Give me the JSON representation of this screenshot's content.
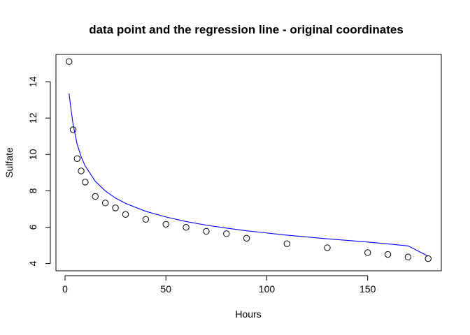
{
  "chart_data": {
    "type": "scatter",
    "title": "data point and the regression line - original coordinates",
    "xlabel": "Hours",
    "ylabel": "Sulfate",
    "xlim": [
      -4.5,
      186.5
    ],
    "ylim": [
      3.6,
      15.5
    ],
    "x_ticks": [
      0,
      50,
      100,
      150
    ],
    "y_ticks": [
      4,
      6,
      8,
      10,
      12,
      14
    ],
    "points": {
      "x": [
        2,
        4,
        6,
        8,
        10,
        15,
        20,
        25,
        30,
        40,
        50,
        60,
        70,
        80,
        90,
        110,
        130,
        150,
        160,
        170,
        180
      ],
      "y": [
        15.11,
        11.36,
        9.77,
        9.09,
        8.48,
        7.69,
        7.33,
        7.06,
        6.7,
        6.43,
        6.16,
        5.99,
        5.77,
        5.64,
        5.39,
        5.09,
        4.87,
        4.6,
        4.5,
        4.36,
        4.27
      ]
    },
    "regression_line": {
      "color": "#0000ff",
      "x": [
        2,
        3,
        4,
        6,
        8,
        10,
        15,
        20,
        25,
        30,
        40,
        50,
        60,
        70,
        80,
        90,
        110,
        130,
        150,
        160,
        170,
        180
      ],
      "y": [
        13.35,
        12.45,
        11.65,
        10.57,
        9.87,
        9.36,
        8.52,
        7.99,
        7.6,
        7.31,
        6.87,
        6.56,
        6.31,
        6.11,
        5.95,
        5.8,
        5.56,
        5.36,
        5.18,
        5.08,
        4.97,
        4.4
      ]
    },
    "grid": false,
    "legend": "none"
  }
}
